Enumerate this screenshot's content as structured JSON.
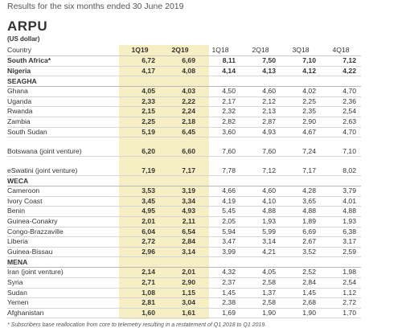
{
  "header": "Results for the six months ended 30 June 2019",
  "title": "ARPU",
  "subtitle": "(US dollar)",
  "columns": [
    "Country",
    "1Q19",
    "2Q19",
    "1Q18",
    "2Q18",
    "3Q18",
    "4Q18"
  ],
  "rows": [
    {
      "label": "South Africa*",
      "values": [
        "6,72",
        "6,69",
        "8,11",
        "7,50",
        "7,10",
        "7,12"
      ],
      "bold": true
    },
    {
      "label": "Nigeria",
      "values": [
        "4,17",
        "4,08",
        "4,14",
        "4,13",
        "4,12",
        "4,22"
      ],
      "bold": true
    },
    {
      "group": "SEAGHA"
    },
    {
      "label": "Ghana",
      "values": [
        "4,05",
        "4,03",
        "4,50",
        "4,60",
        "4,02",
        "4,70"
      ]
    },
    {
      "label": "Uganda",
      "values": [
        "2,33",
        "2,22",
        "2,17",
        "2,12",
        "2,25",
        "2,36"
      ]
    },
    {
      "label": "Rwanda",
      "values": [
        "2,15",
        "2,24",
        "2,32",
        "2,13",
        "2,35",
        "2,54"
      ]
    },
    {
      "label": "Zambia",
      "values": [
        "2,25",
        "2,18",
        "2,82",
        "2,87",
        "2,90",
        "2,63"
      ]
    },
    {
      "label": "South Sudan",
      "values": [
        "5,19",
        "6,45",
        "3,60",
        "4,93",
        "4,67",
        "4,70"
      ]
    },
    {
      "label": "Botswana (joint venture)",
      "values": [
        "6,20",
        "6,60",
        "7,60",
        "7,60",
        "7,24",
        "7,10"
      ],
      "double": true
    },
    {
      "label": "eSwatini (joint venture)",
      "values": [
        "7,19",
        "7,17",
        "7,78",
        "7,12",
        "7,17",
        "8,02"
      ],
      "double": true
    },
    {
      "group": "WECA"
    },
    {
      "label": "Cameroon",
      "values": [
        "3,53",
        "3,19",
        "4,66",
        "4,60",
        "4,28",
        "3,79"
      ]
    },
    {
      "label": "Ivory Coast",
      "values": [
        "3,45",
        "3,34",
        "4,19",
        "4,10",
        "3,65",
        "4,01"
      ]
    },
    {
      "label": "Benin",
      "values": [
        "4,95",
        "4,93",
        "5,45",
        "4,88",
        "4,88",
        "4,88"
      ]
    },
    {
      "label": "Guinea-Conakry",
      "values": [
        "2,01",
        "2,11",
        "2,05",
        "1,93",
        "1,89",
        "1,93"
      ]
    },
    {
      "label": "Congo-Brazzaville",
      "values": [
        "6,04",
        "6,54",
        "5,94",
        "5,99",
        "6,69",
        "6,38"
      ]
    },
    {
      "label": "Liberia",
      "values": [
        "2,72",
        "2,84",
        "3,47",
        "3,14",
        "2,67",
        "3,17"
      ]
    },
    {
      "label": "Guinea-Bissau",
      "values": [
        "2,96",
        "3,14",
        "3,99",
        "4,21",
        "3,52",
        "2,59"
      ]
    },
    {
      "group": "MENA"
    },
    {
      "label": "Iran (joint venture)",
      "values": [
        "2,14",
        "2,01",
        "4,32",
        "4,05",
        "2,52",
        "1,98"
      ]
    },
    {
      "label": "Syria",
      "values": [
        "2,71",
        "2,90",
        "2,37",
        "2,58",
        "2,84",
        "2,54"
      ]
    },
    {
      "label": "Sudan",
      "values": [
        "1,08",
        "1,15",
        "1,45",
        "1,37",
        "1,45",
        "1,12"
      ]
    },
    {
      "label": "Yemen",
      "values": [
        "2,81",
        "3,04",
        "2,38",
        "2,58",
        "2,68",
        "2,72"
      ]
    },
    {
      "label": "Afghanistan",
      "values": [
        "1,60",
        "1,61",
        "1,69",
        "1,90",
        "1,90",
        "1,70"
      ]
    }
  ],
  "footnote": "* Subscribers base reallocation from core to telemetry resulting in a restatement of Q1 2018 to Q1 2019."
}
